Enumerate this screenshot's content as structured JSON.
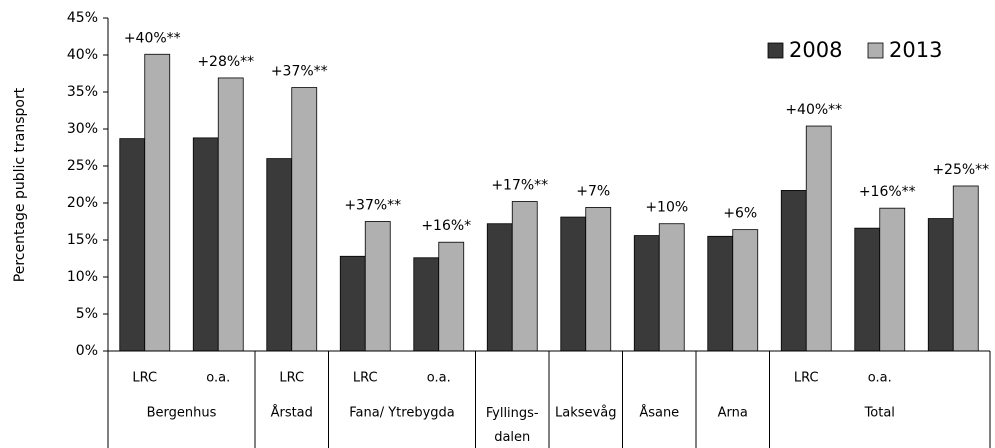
{
  "chart_data": {
    "type": "bar",
    "y_label": "Percentage public transport",
    "categories": [
      "LRC",
      "o.a.",
      "LRC",
      "LRC",
      "o.a.",
      null,
      null,
      null,
      null,
      "LRC",
      "o.a.",
      null
    ],
    "groups": [
      "Bergenhus",
      "Bergenhus",
      "Årstad",
      "Fana/ Ytrebygda",
      "Fana/ Ytrebygda",
      "Fyllings-\ndalen",
      "Laksevåg",
      "Åsane",
      "Arna",
      "Total",
      "Total",
      "Total"
    ],
    "series": [
      {
        "name": "2008",
        "color": "#3a3a3a",
        "values": [
          28.7,
          28.8,
          26.0,
          12.8,
          12.6,
          17.2,
          18.1,
          15.6,
          15.5,
          21.7,
          16.6,
          17.9
        ]
      },
      {
        "name": "2013",
        "color": "#b0b0b0",
        "values": [
          40.1,
          36.9,
          35.6,
          17.5,
          14.7,
          20.2,
          19.4,
          17.2,
          16.4,
          30.4,
          19.3,
          22.3
        ]
      }
    ],
    "annotations": [
      "+40%**",
      "+28%**",
      "+37%**",
      "+37%**",
      "+16%*",
      "+17%**",
      "+7%",
      "+10%",
      "+6%",
      "+40%**",
      "+16%**",
      "+25%**"
    ],
    "ylim": [
      0,
      45
    ],
    "yticks": [
      {
        "value": 0,
        "label": "0%"
      },
      {
        "value": 5,
        "label": "5%"
      },
      {
        "value": 10,
        "label": "10%"
      },
      {
        "value": 15,
        "label": "15%"
      },
      {
        "value": 20,
        "label": "20%"
      },
      {
        "value": 25,
        "label": "25%"
      },
      {
        "value": 30,
        "label": "30%"
      },
      {
        "value": 35,
        "label": "35%"
      },
      {
        "value": 40,
        "label": "40%"
      },
      {
        "value": 45,
        "label": "45%"
      }
    ],
    "legend": "top-right"
  }
}
